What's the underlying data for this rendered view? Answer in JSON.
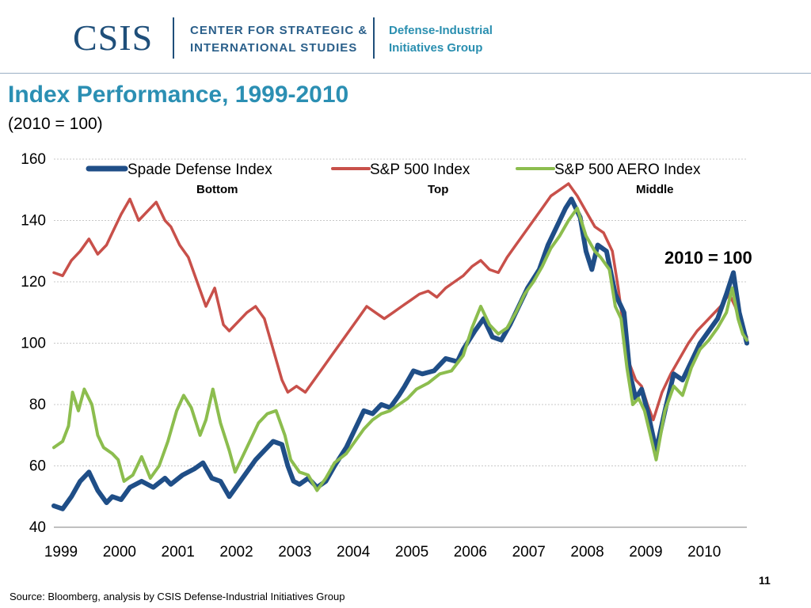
{
  "header": {
    "logo": "CSIS",
    "org_line1": "CENTER FOR STRATEGIC &",
    "org_line2": "INTERNATIONAL STUDIES",
    "group_line1": "Defense-Industrial",
    "group_line2": "Initiatives Group"
  },
  "slide": {
    "title": "Index Performance, 1999-2010",
    "subtitle": "(2010 = 100)",
    "callout": "2010 = 100",
    "page_number": "11",
    "source": "Source: Bloomberg, analysis by CSIS Defense-Industrial Initiatives Group"
  },
  "chart_data": {
    "type": "line",
    "title": "",
    "xlabel": "",
    "ylabel": "",
    "xlim": [
      1999.0,
      2010.85
    ],
    "ylim": [
      40,
      160
    ],
    "yticks": [
      40,
      60,
      80,
      100,
      120,
      140,
      160
    ],
    "xticks": [
      "1999",
      "2000",
      "2001",
      "2002",
      "2003",
      "2004",
      "2005",
      "2006",
      "2007",
      "2008",
      "2009",
      "2010"
    ],
    "grid": true,
    "legend_position": "top",
    "series": [
      {
        "name": "Spade Defense Index",
        "note": "Bottom",
        "color": "#1f4e87",
        "points": [
          [
            1999.0,
            47
          ],
          [
            1999.15,
            46
          ],
          [
            1999.3,
            50
          ],
          [
            1999.45,
            55
          ],
          [
            1999.6,
            58
          ],
          [
            1999.75,
            52
          ],
          [
            1999.9,
            48
          ],
          [
            2000.0,
            50
          ],
          [
            2000.15,
            49
          ],
          [
            2000.3,
            53
          ],
          [
            2000.5,
            55
          ],
          [
            2000.7,
            53
          ],
          [
            2000.9,
            56
          ],
          [
            2001.0,
            54
          ],
          [
            2001.2,
            57
          ],
          [
            2001.4,
            59
          ],
          [
            2001.55,
            61
          ],
          [
            2001.7,
            56
          ],
          [
            2001.85,
            55
          ],
          [
            2002.0,
            50
          ],
          [
            2002.15,
            54
          ],
          [
            2002.3,
            58
          ],
          [
            2002.45,
            62
          ],
          [
            2002.6,
            65
          ],
          [
            2002.75,
            68
          ],
          [
            2002.9,
            67
          ],
          [
            2003.0,
            60
          ],
          [
            2003.1,
            55
          ],
          [
            2003.2,
            54
          ],
          [
            2003.35,
            56
          ],
          [
            2003.5,
            53
          ],
          [
            2003.65,
            55
          ],
          [
            2003.8,
            60
          ],
          [
            2004.0,
            66
          ],
          [
            2004.15,
            72
          ],
          [
            2004.3,
            78
          ],
          [
            2004.45,
            77
          ],
          [
            2004.6,
            80
          ],
          [
            2004.75,
            79
          ],
          [
            2004.9,
            83
          ],
          [
            2005.0,
            86
          ],
          [
            2005.15,
            91
          ],
          [
            2005.3,
            90
          ],
          [
            2005.5,
            91
          ],
          [
            2005.7,
            95
          ],
          [
            2005.9,
            94
          ],
          [
            2006.0,
            98
          ],
          [
            2006.2,
            104
          ],
          [
            2006.35,
            108
          ],
          [
            2006.5,
            102
          ],
          [
            2006.65,
            101
          ],
          [
            2006.8,
            106
          ],
          [
            2006.95,
            112
          ],
          [
            2007.1,
            118
          ],
          [
            2007.3,
            124
          ],
          [
            2007.45,
            132
          ],
          [
            2007.6,
            138
          ],
          [
            2007.75,
            144
          ],
          [
            2007.85,
            147
          ],
          [
            2008.0,
            141
          ],
          [
            2008.1,
            130
          ],
          [
            2008.2,
            124
          ],
          [
            2008.3,
            132
          ],
          [
            2008.45,
            130
          ],
          [
            2008.6,
            116
          ],
          [
            2008.75,
            110
          ],
          [
            2008.85,
            90
          ],
          [
            2008.95,
            82
          ],
          [
            2009.05,
            85
          ],
          [
            2009.15,
            78
          ],
          [
            2009.3,
            65
          ],
          [
            2009.45,
            78
          ],
          [
            2009.6,
            90
          ],
          [
            2009.75,
            88
          ],
          [
            2009.9,
            94
          ],
          [
            2010.05,
            100
          ],
          [
            2010.2,
            104
          ],
          [
            2010.35,
            108
          ],
          [
            2010.5,
            116
          ],
          [
            2010.62,
            123
          ],
          [
            2010.72,
            110
          ],
          [
            2010.8,
            104
          ],
          [
            2010.85,
            100
          ]
        ]
      },
      {
        "name": "S&P 500 Index",
        "note": "Top",
        "color": "#c8504a",
        "points": [
          [
            1999.0,
            123
          ],
          [
            1999.15,
            122
          ],
          [
            1999.3,
            127
          ],
          [
            1999.45,
            130
          ],
          [
            1999.6,
            134
          ],
          [
            1999.75,
            129
          ],
          [
            1999.9,
            132
          ],
          [
            2000.0,
            136
          ],
          [
            2000.15,
            142
          ],
          [
            2000.3,
            147
          ],
          [
            2000.45,
            140
          ],
          [
            2000.6,
            143
          ],
          [
            2000.75,
            146
          ],
          [
            2000.9,
            140
          ],
          [
            2001.0,
            138
          ],
          [
            2001.15,
            132
          ],
          [
            2001.3,
            128
          ],
          [
            2001.45,
            120
          ],
          [
            2001.6,
            112
          ],
          [
            2001.75,
            118
          ],
          [
            2001.9,
            106
          ],
          [
            2002.0,
            104
          ],
          [
            2002.15,
            107
          ],
          [
            2002.3,
            110
          ],
          [
            2002.45,
            112
          ],
          [
            2002.6,
            108
          ],
          [
            2002.75,
            98
          ],
          [
            2002.9,
            88
          ],
          [
            2003.0,
            84
          ],
          [
            2003.15,
            86
          ],
          [
            2003.3,
            84
          ],
          [
            2003.45,
            88
          ],
          [
            2003.6,
            92
          ],
          [
            2003.75,
            96
          ],
          [
            2003.9,
            100
          ],
          [
            2004.05,
            104
          ],
          [
            2004.2,
            108
          ],
          [
            2004.35,
            112
          ],
          [
            2004.5,
            110
          ],
          [
            2004.65,
            108
          ],
          [
            2004.8,
            110
          ],
          [
            2004.95,
            112
          ],
          [
            2005.1,
            114
          ],
          [
            2005.25,
            116
          ],
          [
            2005.4,
            117
          ],
          [
            2005.55,
            115
          ],
          [
            2005.7,
            118
          ],
          [
            2005.85,
            120
          ],
          [
            2006.0,
            122
          ],
          [
            2006.15,
            125
          ],
          [
            2006.3,
            127
          ],
          [
            2006.45,
            124
          ],
          [
            2006.6,
            123
          ],
          [
            2006.75,
            128
          ],
          [
            2006.9,
            132
          ],
          [
            2007.05,
            136
          ],
          [
            2007.2,
            140
          ],
          [
            2007.35,
            144
          ],
          [
            2007.5,
            148
          ],
          [
            2007.65,
            150
          ],
          [
            2007.8,
            152
          ],
          [
            2007.95,
            148
          ],
          [
            2008.1,
            143
          ],
          [
            2008.25,
            138
          ],
          [
            2008.4,
            136
          ],
          [
            2008.55,
            130
          ],
          [
            2008.65,
            118
          ],
          [
            2008.75,
            104
          ],
          [
            2008.85,
            93
          ],
          [
            2008.95,
            88
          ],
          [
            2009.05,
            86
          ],
          [
            2009.15,
            80
          ],
          [
            2009.25,
            75
          ],
          [
            2009.4,
            84
          ],
          [
            2009.55,
            90
          ],
          [
            2009.7,
            95
          ],
          [
            2009.85,
            100
          ],
          [
            2010.0,
            104
          ],
          [
            2010.2,
            108
          ],
          [
            2010.4,
            112
          ],
          [
            2010.55,
            116
          ],
          [
            2010.65,
            112
          ],
          [
            2010.75,
            106
          ],
          [
            2010.85,
            102
          ]
        ]
      },
      {
        "name": "S&P 500 AERO Index",
        "note": "Middle",
        "color": "#8cbd4e",
        "points": [
          [
            1999.0,
            66
          ],
          [
            1999.15,
            68
          ],
          [
            1999.25,
            73
          ],
          [
            1999.32,
            84
          ],
          [
            1999.42,
            78
          ],
          [
            1999.52,
            85
          ],
          [
            1999.65,
            80
          ],
          [
            1999.75,
            70
          ],
          [
            1999.85,
            66
          ],
          [
            2000.0,
            64
          ],
          [
            2000.1,
            62
          ],
          [
            2000.2,
            55
          ],
          [
            2000.35,
            57
          ],
          [
            2000.5,
            63
          ],
          [
            2000.65,
            56
          ],
          [
            2000.8,
            60
          ],
          [
            2000.95,
            68
          ],
          [
            2001.1,
            78
          ],
          [
            2001.22,
            83
          ],
          [
            2001.35,
            79
          ],
          [
            2001.5,
            70
          ],
          [
            2001.6,
            75
          ],
          [
            2001.72,
            85
          ],
          [
            2001.85,
            74
          ],
          [
            2002.0,
            65
          ],
          [
            2002.1,
            58
          ],
          [
            2002.2,
            62
          ],
          [
            2002.35,
            68
          ],
          [
            2002.5,
            74
          ],
          [
            2002.65,
            77
          ],
          [
            2002.8,
            78
          ],
          [
            2002.95,
            70
          ],
          [
            2003.05,
            62
          ],
          [
            2003.2,
            58
          ],
          [
            2003.35,
            57
          ],
          [
            2003.5,
            52
          ],
          [
            2003.65,
            56
          ],
          [
            2003.8,
            61
          ],
          [
            2004.0,
            64
          ],
          [
            2004.15,
            68
          ],
          [
            2004.3,
            72
          ],
          [
            2004.45,
            75
          ],
          [
            2004.6,
            77
          ],
          [
            2004.75,
            78
          ],
          [
            2004.9,
            80
          ],
          [
            2005.05,
            82
          ],
          [
            2005.2,
            85
          ],
          [
            2005.4,
            87
          ],
          [
            2005.6,
            90
          ],
          [
            2005.8,
            91
          ],
          [
            2006.0,
            96
          ],
          [
            2006.15,
            105
          ],
          [
            2006.3,
            112
          ],
          [
            2006.45,
            106
          ],
          [
            2006.6,
            103
          ],
          [
            2006.75,
            105
          ],
          [
            2006.9,
            110
          ],
          [
            2007.05,
            116
          ],
          [
            2007.2,
            120
          ],
          [
            2007.35,
            125
          ],
          [
            2007.5,
            131
          ],
          [
            2007.65,
            135
          ],
          [
            2007.8,
            140
          ],
          [
            2007.95,
            144
          ],
          [
            2008.1,
            135
          ],
          [
            2008.25,
            130
          ],
          [
            2008.35,
            128
          ],
          [
            2008.5,
            124
          ],
          [
            2008.6,
            112
          ],
          [
            2008.7,
            108
          ],
          [
            2008.8,
            92
          ],
          [
            2008.9,
            80
          ],
          [
            2009.0,
            82
          ],
          [
            2009.1,
            78
          ],
          [
            2009.2,
            70
          ],
          [
            2009.3,
            62
          ],
          [
            2009.45,
            78
          ],
          [
            2009.6,
            86
          ],
          [
            2009.75,
            83
          ],
          [
            2009.9,
            92
          ],
          [
            2010.05,
            98
          ],
          [
            2010.2,
            101
          ],
          [
            2010.35,
            105
          ],
          [
            2010.5,
            110
          ],
          [
            2010.6,
            118
          ],
          [
            2010.7,
            108
          ],
          [
            2010.78,
            103
          ],
          [
            2010.85,
            101
          ]
        ]
      }
    ]
  }
}
